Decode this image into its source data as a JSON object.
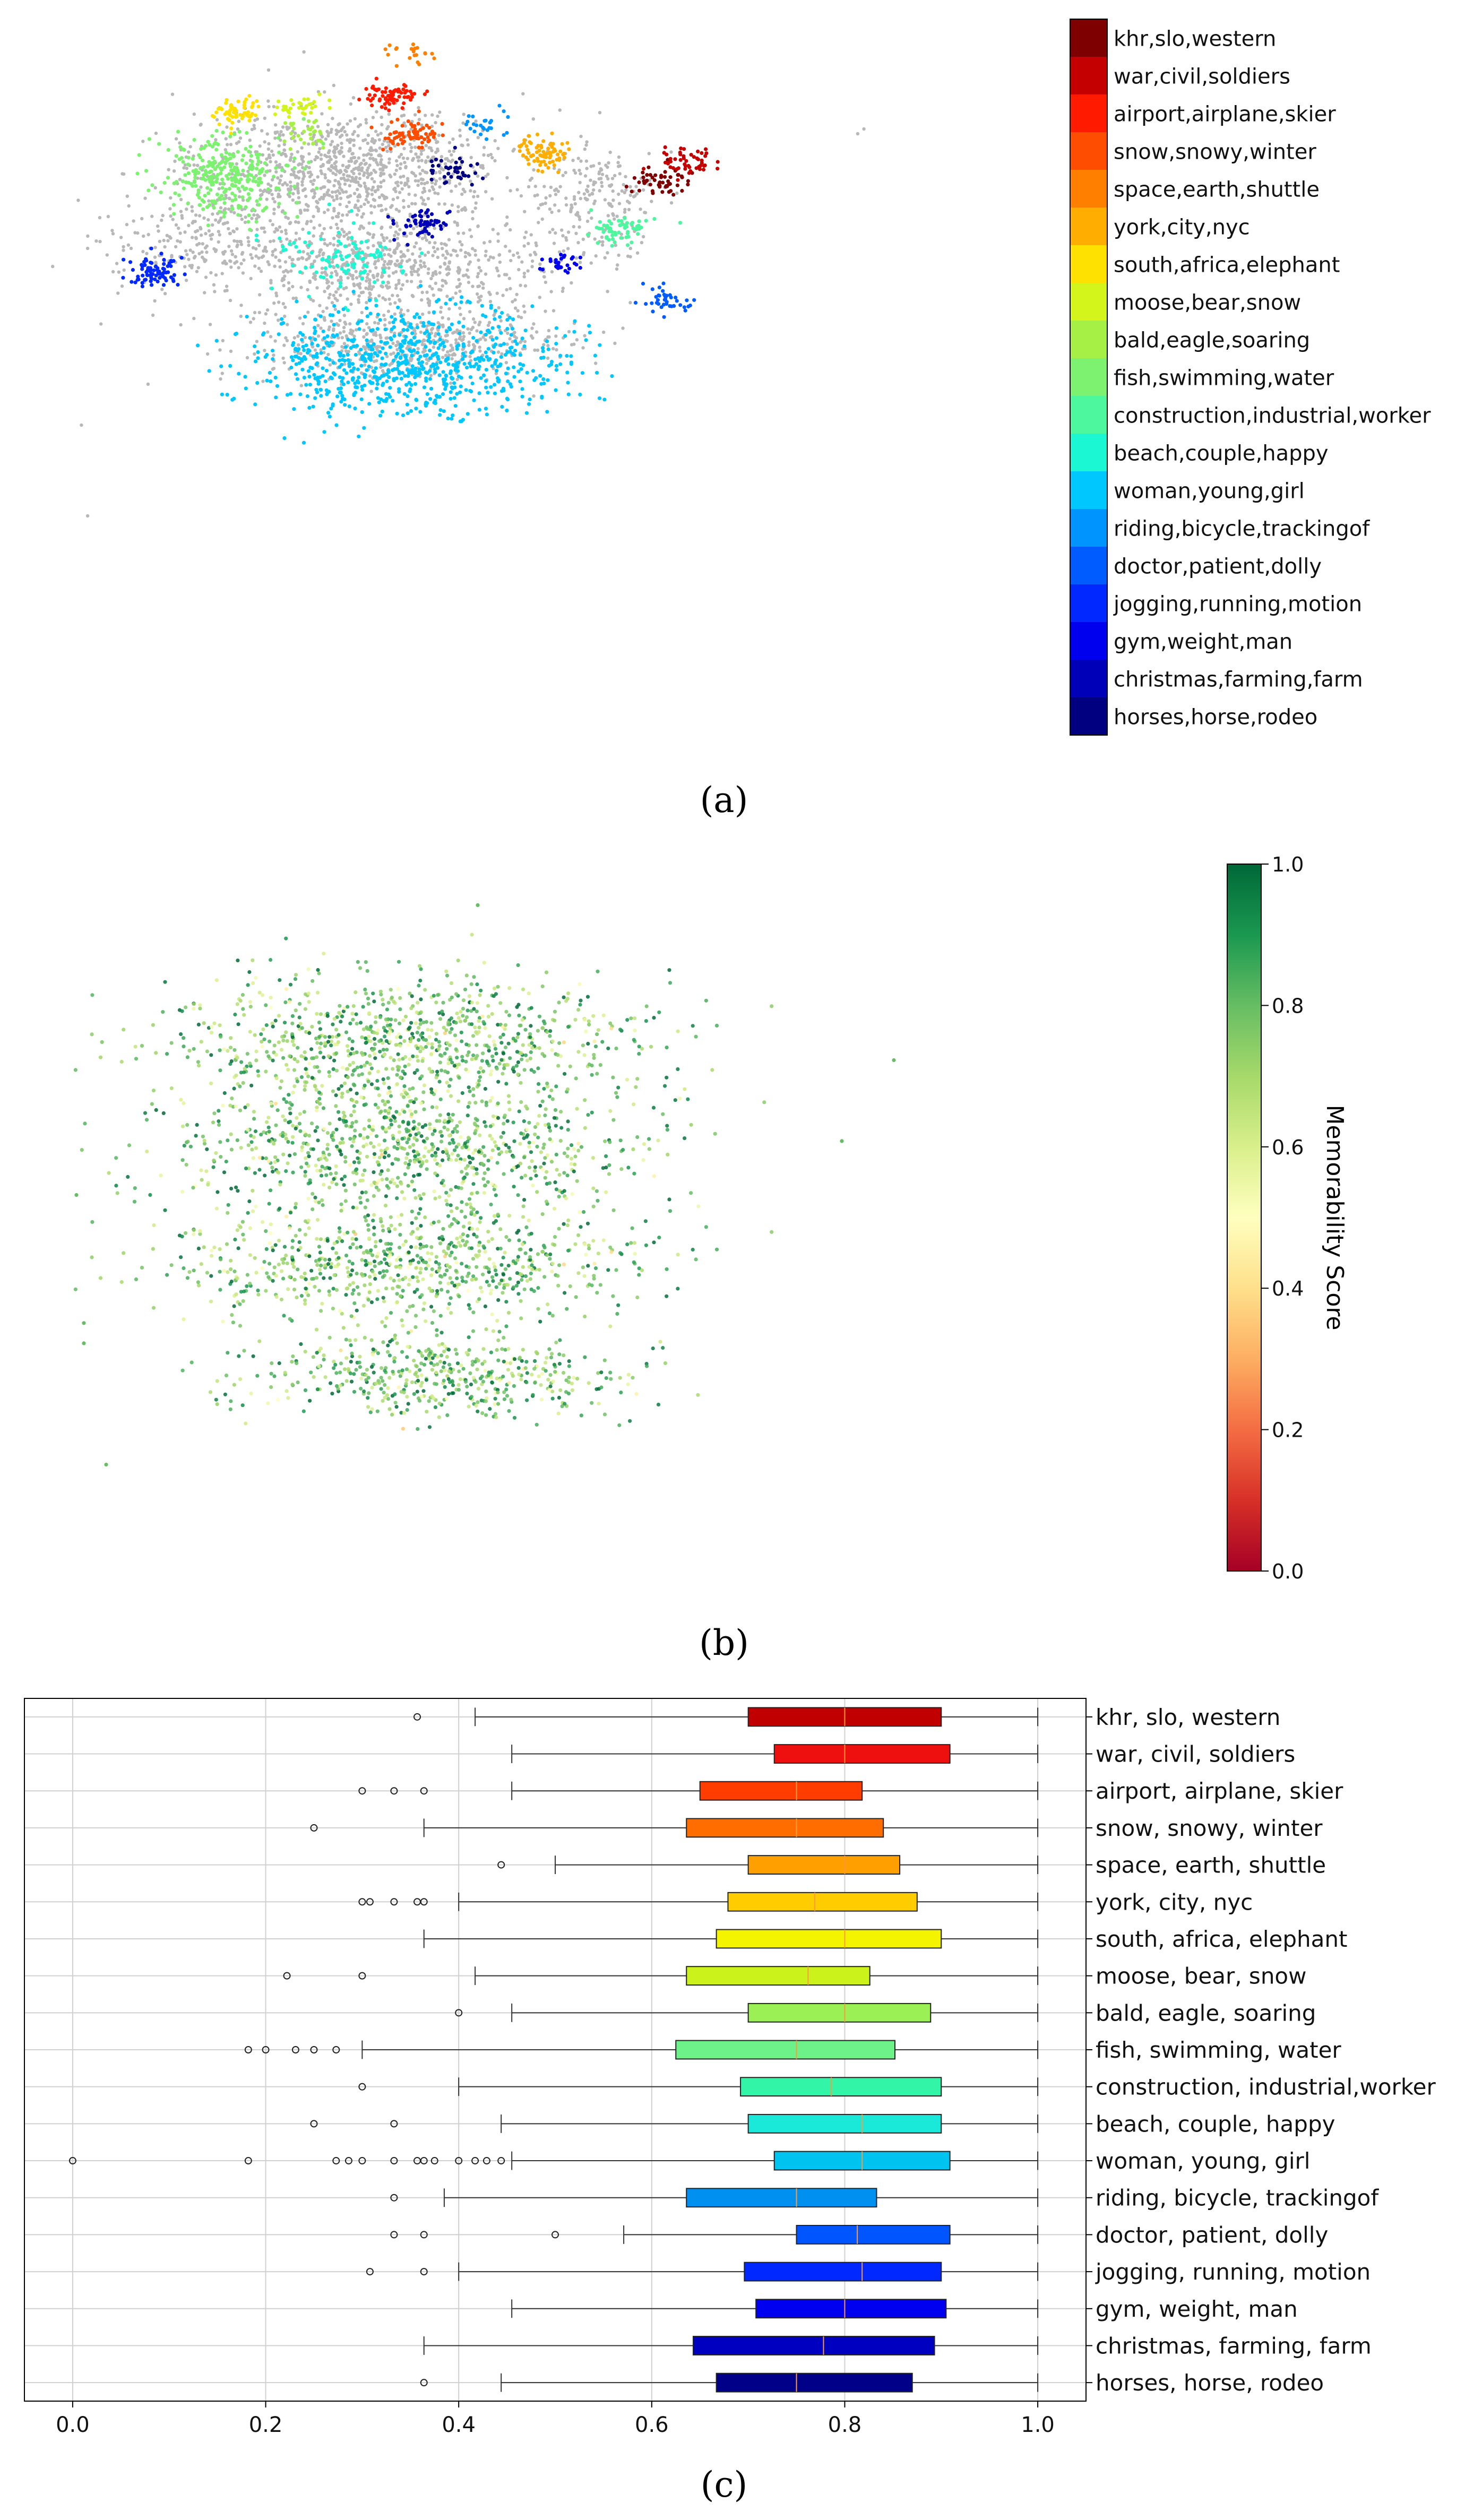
{
  "panels": {
    "a": {
      "caption": "(a)"
    },
    "b": {
      "caption": "(b)",
      "colorbar_label": "Memorability Score",
      "colorbar_ticks": [
        "0.0",
        "0.2",
        "0.4",
        "0.6",
        "0.8",
        "1.0"
      ]
    },
    "c": {
      "caption": "(c)"
    }
  },
  "legend_a": [
    {
      "label": "khr,slo,western",
      "color": "#7f0000"
    },
    {
      "label": "war,civil,soldiers",
      "color": "#c40000"
    },
    {
      "label": "airport,airplane,skier",
      "color": "#ff1a00"
    },
    {
      "label": "snow,snowy,winter",
      "color": "#ff4d00"
    },
    {
      "label": "space,earth,shuttle",
      "color": "#ff7f00"
    },
    {
      "label": "york,city,nyc",
      "color": "#ffae00"
    },
    {
      "label": "south,africa,elephant",
      "color": "#ffe100"
    },
    {
      "label": "moose,bear,snow",
      "color": "#d4f51b"
    },
    {
      "label": "bald,eagle,soaring",
      "color": "#a6f046"
    },
    {
      "label": "fish,swimming,water",
      "color": "#7cf270"
    },
    {
      "label": "construction,industrial,worker",
      "color": "#4cf79e"
    },
    {
      "label": "beach,couple,happy",
      "color": "#1bf7d2"
    },
    {
      "label": "woman,young,girl",
      "color": "#00c8ff"
    },
    {
      "label": "riding,bicycle,trackingof",
      "color": "#0094ff"
    },
    {
      "label": "doctor,patient,dolly",
      "color": "#005cff"
    },
    {
      "label": "jogging,running,motion",
      "color": "#0028ff"
    },
    {
      "label": "gym,weight,man",
      "color": "#0000ee"
    },
    {
      "label": "christmas,farming,farm",
      "color": "#0000b8"
    },
    {
      "label": "horses,horse,rodeo",
      "color": "#000080"
    }
  ],
  "chart_data": [
    {
      "type": "scatter",
      "panel": "a",
      "title": "",
      "note": "2D embedding of images colored by topic cluster; gray = unclustered",
      "clusters": [
        {
          "name": "khr,slo,western",
          "color": "#7f0000",
          "center": [
            0.95,
            0.28
          ],
          "n": 55
        },
        {
          "name": "war,civil,soldiers",
          "color": "#c40000",
          "center": [
            0.99,
            0.24
          ],
          "n": 50
        },
        {
          "name": "airport,airplane,skier",
          "color": "#ff1a00",
          "center": [
            0.52,
            0.1
          ],
          "n": 70
        },
        {
          "name": "snow,snowy,winter",
          "color": "#ff4d00",
          "center": [
            0.55,
            0.18
          ],
          "n": 70
        },
        {
          "name": "space,earth,shuttle",
          "color": "#ff7f00",
          "center": [
            0.55,
            0.01
          ],
          "n": 20
        },
        {
          "name": "york,city,nyc",
          "color": "#ffae00",
          "center": [
            0.77,
            0.22
          ],
          "n": 80
        },
        {
          "name": "south,africa,elephant",
          "color": "#ffe100",
          "center": [
            0.27,
            0.13
          ],
          "n": 60
        },
        {
          "name": "moose,bear,snow",
          "color": "#d4f51b",
          "center": [
            0.37,
            0.12
          ],
          "n": 35
        },
        {
          "name": "bald,eagle,soaring",
          "color": "#a6f046",
          "center": [
            0.38,
            0.18
          ],
          "n": 30
        },
        {
          "name": "fish,swimming,water",
          "color": "#7cf270",
          "center": [
            0.25,
            0.27
          ],
          "n": 300
        },
        {
          "name": "construction,industrial,worker",
          "color": "#4cf79e",
          "center": [
            0.89,
            0.38
          ],
          "n": 60
        },
        {
          "name": "beach,couple,happy",
          "color": "#1bf7d2",
          "center": [
            0.44,
            0.44
          ],
          "n": 100
        },
        {
          "name": "woman,young,girl",
          "color": "#00c8ff",
          "center": [
            0.54,
            0.66
          ],
          "n": 750
        },
        {
          "name": "riding,bicycle,trackingof",
          "color": "#0094ff",
          "center": [
            0.67,
            0.16
          ],
          "n": 25
        },
        {
          "name": "doctor,patient,dolly",
          "color": "#005cff",
          "center": [
            0.96,
            0.53
          ],
          "n": 40
        },
        {
          "name": "jogging,running,motion",
          "color": "#0028ff",
          "center": [
            0.14,
            0.47
          ],
          "n": 80
        },
        {
          "name": "gym,weight,man",
          "color": "#0000ee",
          "center": [
            0.8,
            0.45
          ],
          "n": 30
        },
        {
          "name": "christmas,farming,farm",
          "color": "#0000b8",
          "center": [
            0.57,
            0.37
          ],
          "n": 55
        },
        {
          "name": "horses,horse,rodeo",
          "color": "#000080",
          "center": [
            0.62,
            0.26
          ],
          "n": 40
        }
      ]
    },
    {
      "type": "scatter",
      "panel": "b",
      "title": "",
      "colorbar": {
        "label": "Memorability Score",
        "range": [
          0.0,
          1.0
        ],
        "ticks": [
          0.0,
          0.2,
          0.4,
          0.6,
          0.8,
          1.0
        ],
        "colormap": "RdYlGn"
      }
    },
    {
      "type": "box",
      "panel": "c",
      "title": "",
      "orientation": "horizontal",
      "xlim": [
        -0.05,
        1.05
      ],
      "xticks": [
        0.0,
        0.2,
        0.4,
        0.6,
        0.8,
        1.0
      ],
      "xtick_labels": [
        "0.0",
        "0.2",
        "0.4",
        "0.6",
        "0.8",
        "1.0"
      ],
      "grid": true,
      "categories": [
        "khr, slo, western",
        "war, civil, soldiers",
        "airport, airplane, skier",
        "snow, snowy, winter",
        "space, earth, shuttle",
        "york, city, nyc",
        "south, africa, elephant",
        "moose, bear, snow",
        "bald, eagle, soaring",
        "fish, swimming, water",
        "construction, industrial,worker",
        "beach, couple, happy",
        "woman, young, girl",
        "riding, bicycle, trackingof",
        "doctor, patient, dolly",
        "jogging, running, motion",
        "gym, weight, man",
        "christmas, farming, farm",
        "horses, horse, rodeo"
      ],
      "boxes": [
        {
          "wlo": 0.417,
          "q1": 0.7,
          "med": 0.8,
          "q3": 0.9,
          "whi": 1.0,
          "fliers": [
            0.357
          ],
          "color": "#c00000"
        },
        {
          "wlo": 0.455,
          "q1": 0.727,
          "med": 0.8,
          "q3": 0.909,
          "whi": 1.0,
          "fliers": [],
          "color": "#ee0f0f"
        },
        {
          "wlo": 0.455,
          "q1": 0.65,
          "med": 0.75,
          "q3": 0.818,
          "whi": 1.0,
          "fliers": [
            0.3,
            0.333,
            0.364
          ],
          "color": "#ff3d00"
        },
        {
          "wlo": 0.364,
          "q1": 0.636,
          "med": 0.75,
          "q3": 0.84,
          "whi": 1.0,
          "fliers": [
            0.25
          ],
          "color": "#ff6d00"
        },
        {
          "wlo": 0.5,
          "q1": 0.7,
          "med": 0.8,
          "q3": 0.857,
          "whi": 1.0,
          "fliers": [
            0.444
          ],
          "color": "#ffa000"
        },
        {
          "wlo": 0.4,
          "q1": 0.679,
          "med": 0.769,
          "q3": 0.875,
          "whi": 1.0,
          "fliers": [
            0.3,
            0.308,
            0.333,
            0.357,
            0.364
          ],
          "color": "#ffcc00"
        },
        {
          "wlo": 0.364,
          "q1": 0.667,
          "med": 0.8,
          "q3": 0.9,
          "whi": 1.0,
          "fliers": [],
          "color": "#f4f400"
        },
        {
          "wlo": 0.417,
          "q1": 0.636,
          "med": 0.762,
          "q3": 0.826,
          "whi": 1.0,
          "fliers": [
            0.222,
            0.3
          ],
          "color": "#cbf21a"
        },
        {
          "wlo": 0.455,
          "q1": 0.7,
          "med": 0.8,
          "q3": 0.889,
          "whi": 1.0,
          "fliers": [
            0.4
          ],
          "color": "#9af055"
        },
        {
          "wlo": 0.3,
          "q1": 0.625,
          "med": 0.75,
          "q3": 0.852,
          "whi": 1.0,
          "fliers": [
            0.182,
            0.2,
            0.231,
            0.25,
            0.273
          ],
          "color": "#6cf288"
        },
        {
          "wlo": 0.4,
          "q1": 0.692,
          "med": 0.786,
          "q3": 0.9,
          "whi": 1.0,
          "fliers": [
            0.3
          ],
          "color": "#33f5a8"
        },
        {
          "wlo": 0.444,
          "q1": 0.7,
          "med": 0.818,
          "q3": 0.9,
          "whi": 1.0,
          "fliers": [
            0.25,
            0.333
          ],
          "color": "#1ae8d8"
        },
        {
          "wlo": 0.455,
          "q1": 0.727,
          "med": 0.818,
          "q3": 0.909,
          "whi": 1.0,
          "fliers": [
            0.0,
            0.182,
            0.273,
            0.286,
            0.3,
            0.333,
            0.357,
            0.364,
            0.375,
            0.4,
            0.417,
            0.429,
            0.444
          ],
          "color": "#00c4f0"
        },
        {
          "wlo": 0.385,
          "q1": 0.636,
          "med": 0.75,
          "q3": 0.833,
          "whi": 1.0,
          "fliers": [
            0.333
          ],
          "color": "#0090f0"
        },
        {
          "wlo": 0.571,
          "q1": 0.75,
          "med": 0.813,
          "q3": 0.909,
          "whi": 1.0,
          "fliers": [
            0.333,
            0.364,
            0.5
          ],
          "color": "#0055ff"
        },
        {
          "wlo": 0.4,
          "q1": 0.696,
          "med": 0.818,
          "q3": 0.9,
          "whi": 1.0,
          "fliers": [
            0.308,
            0.364
          ],
          "color": "#0028ff"
        },
        {
          "wlo": 0.455,
          "q1": 0.708,
          "med": 0.8,
          "q3": 0.905,
          "whi": 1.0,
          "fliers": [],
          "color": "#0000f0"
        },
        {
          "wlo": 0.364,
          "q1": 0.643,
          "med": 0.778,
          "q3": 0.893,
          "whi": 1.0,
          "fliers": [],
          "color": "#0000c0"
        },
        {
          "wlo": 0.444,
          "q1": 0.667,
          "med": 0.75,
          "q3": 0.87,
          "whi": 1.0,
          "fliers": [
            0.364
          ],
          "color": "#000088"
        }
      ]
    }
  ]
}
